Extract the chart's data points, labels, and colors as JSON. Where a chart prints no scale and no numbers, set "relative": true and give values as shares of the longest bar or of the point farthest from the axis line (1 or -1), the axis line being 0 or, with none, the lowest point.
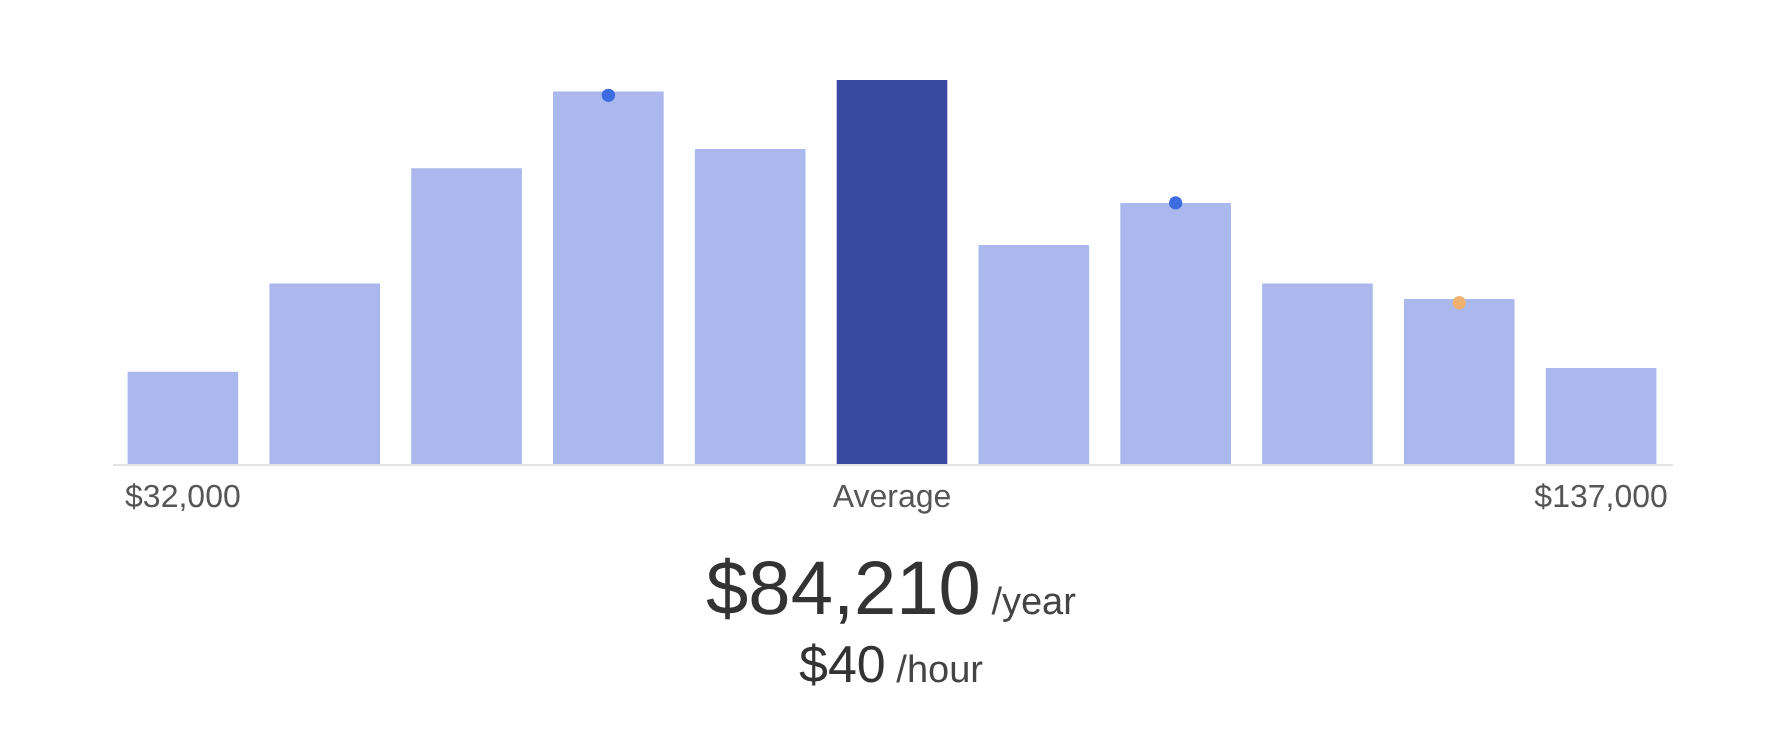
{
  "chart_data": {
    "type": "bar",
    "relative": true,
    "categories": [
      "$32,000",
      null,
      null,
      null,
      null,
      "Average",
      null,
      null,
      null,
      null,
      "$137,000"
    ],
    "series": [
      {
        "colors": [
          "#aab8ee",
          "#aab8ee",
          "#aab8ee",
          "#aab8ee",
          "#aab8ee",
          "#3949a0",
          "#aab8ee",
          "#aab8ee",
          "#aab8ee",
          "#aab8ee",
          "#aab8ee"
        ],
        "values": [
          0.24,
          0.47,
          0.77,
          0.97,
          0.82,
          1,
          0.57,
          0.68,
          0.47,
          0.43,
          0.25
        ]
      },
      {
        "type": "scatter",
        "color": "#3d6be0",
        "values": [
          null,
          null,
          null,
          0.96,
          null,
          null,
          null,
          0.68,
          null,
          null,
          null
        ]
      },
      {
        "type": "scatter",
        "color": "#f0b070",
        "values": [
          null,
          null,
          null,
          null,
          null,
          null,
          null,
          null,
          null,
          0.42,
          null
        ]
      }
    ],
    "marker": "circle",
    "grid": false,
    "annotations": [
      "$84,210",
      "/year",
      "$40",
      "/hour"
    ]
  }
}
